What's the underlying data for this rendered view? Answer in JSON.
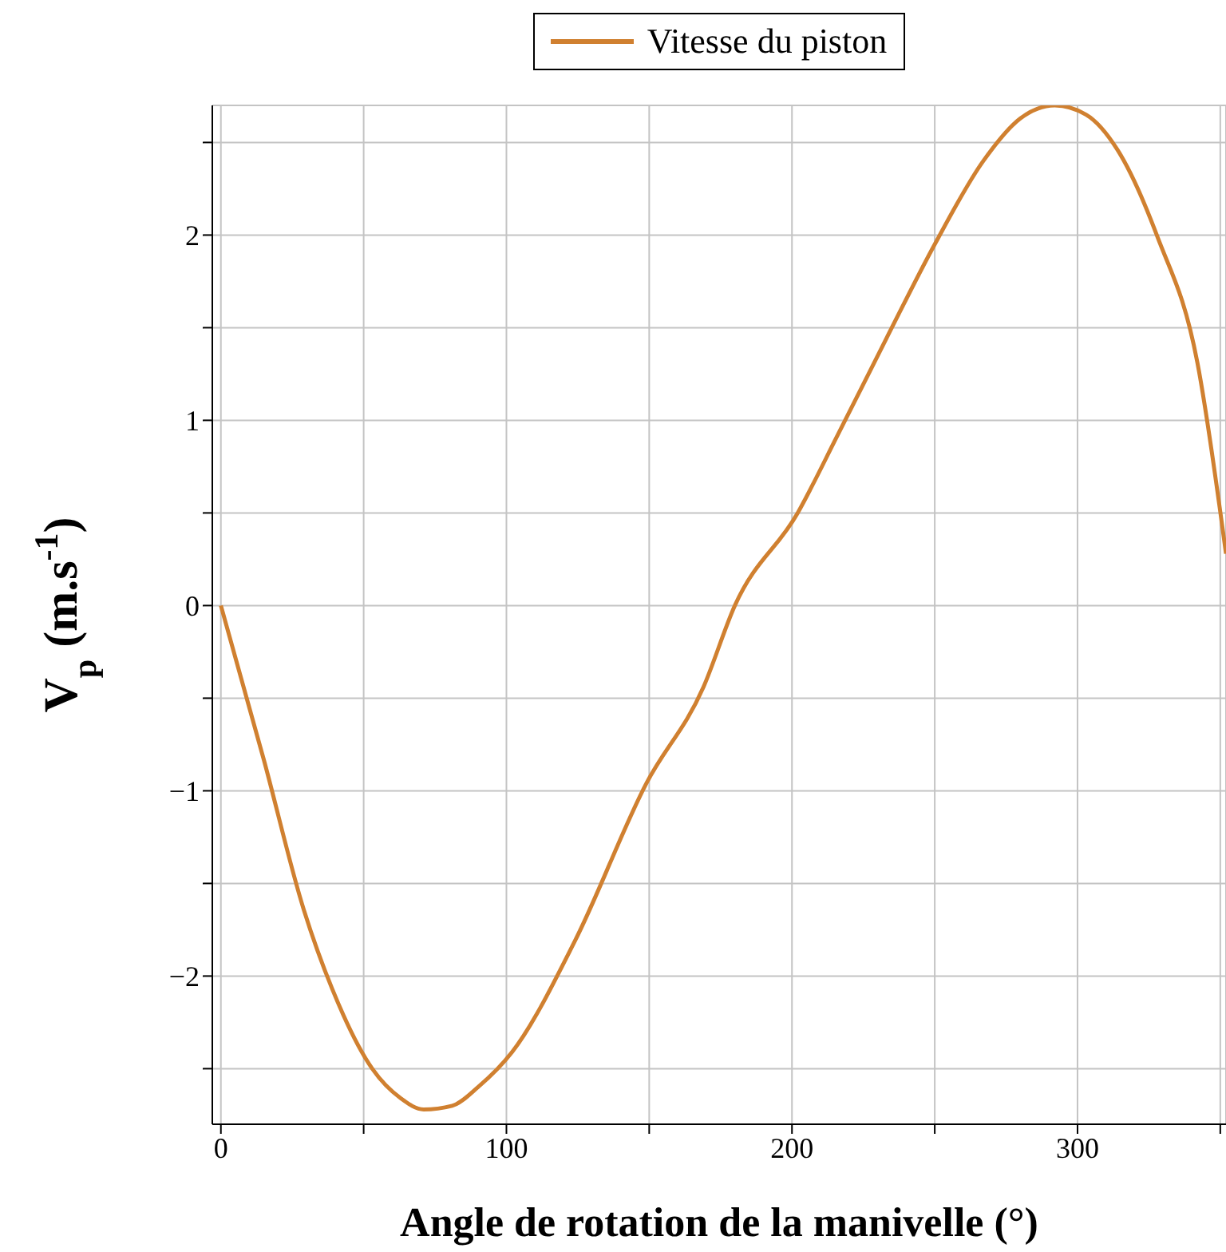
{
  "chart_data": {
    "type": "line",
    "xlabel": "Angle de rotation de la manivelle (°)",
    "ylabel": "V$_{p}$ (m.s$^{-1}$)",
    "x": [
      0,
      15,
      29,
      39,
      53,
      63,
      71,
      81,
      90,
      102,
      124,
      149,
      169,
      180,
      202,
      216,
      233,
      250,
      267,
      280,
      292,
      303,
      314,
      328,
      342,
      352
    ],
    "series": [
      {
        "name": "Vitesse du piston",
        "color": "#d08030",
        "values": [
          0,
          -0.83,
          -1.64,
          -2.07,
          -2.5,
          -2.66,
          -2.72,
          -2.7,
          -2.6,
          -2.41,
          -1.81,
          -0.96,
          -0.44,
          0,
          0.5,
          0.92,
          1.44,
          1.95,
          2.4,
          2.63,
          2.7,
          2.65,
          2.46,
          1.99,
          1.31,
          0.28
        ]
      }
    ],
    "xlim": [
      -3,
      352
    ],
    "xticks": [
      0,
      {
        "value": 50,
        "label": null
      },
      100,
      {
        "value": 150,
        "label": null
      },
      200,
      {
        "value": 250,
        "label": null
      },
      300,
      {
        "value": 350,
        "label": null
      }
    ],
    "ylim": [
      -2.8,
      2.7
    ],
    "yticks": [
      {
        "value": -2.5,
        "label": null
      },
      -2,
      {
        "value": -1.5,
        "label": null
      },
      -1,
      {
        "value": -0.5,
        "label": null
      },
      0,
      {
        "value": 0.5,
        "label": null
      },
      1,
      {
        "value": 1.5,
        "label": null
      },
      2,
      {
        "value": 2.5,
        "label": null
      }
    ],
    "grid": true,
    "legend": "top",
    "marker": "none",
    "line_style": "solid"
  }
}
